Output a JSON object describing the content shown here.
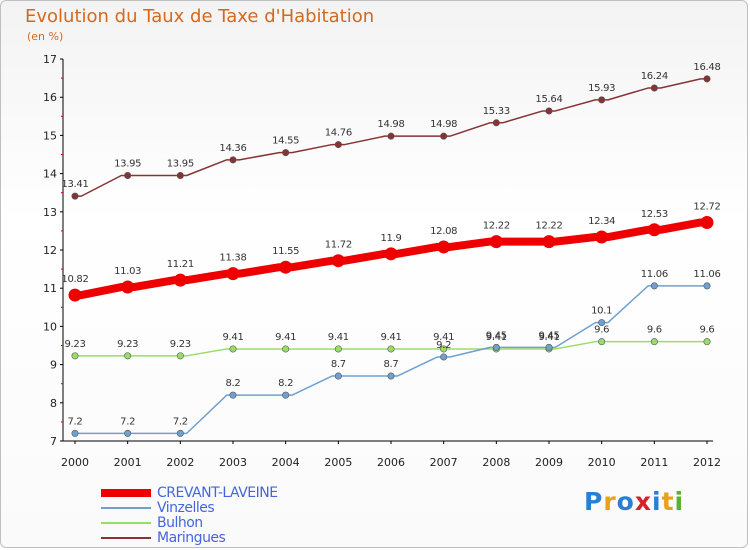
{
  "header": {
    "title": "Evolution du Taux de Taxe d'Habitation",
    "unit": "(en %)"
  },
  "logo": {
    "letters": [
      "P",
      "r",
      "o",
      "x",
      "i",
      "t",
      "i"
    ],
    "colors": [
      "#2a7fd4",
      "#e8a020",
      "#2a7fd4",
      "#d4232a",
      "#2a7fd4",
      "#e8a020",
      "#5ab02f"
    ]
  },
  "chart_data": {
    "type": "line",
    "title": "Evolution du Taux de Taxe d'Habitation",
    "ylabel": "(en %)",
    "xlabel": "",
    "x": [
      "2000",
      "2001",
      "2002",
      "2003",
      "2004",
      "2005",
      "2006",
      "2007",
      "2008",
      "2009",
      "2010",
      "2011",
      "2012"
    ],
    "ylim": [
      7,
      17
    ],
    "yticks": [
      "7",
      "8",
      "9",
      "10",
      "11",
      "12",
      "13",
      "14",
      "15",
      "16",
      "17"
    ],
    "grid": false,
    "legend_position": "bottom-left",
    "series": [
      {
        "name": "CREVANT-LAVEINE",
        "color": "#ee0000",
        "values": [
          10.82,
          11.03,
          11.21,
          11.38,
          11.55,
          11.72,
          11.9,
          12.08,
          12.22,
          12.22,
          12.34,
          12.53,
          12.72
        ],
        "labels": [
          "10.82",
          "11.03",
          "11.21",
          "11.38",
          "11.55",
          "11.72",
          "11.9",
          "12.08",
          "12.22",
          "12.22",
          "12.34",
          "12.53",
          "12.72"
        ]
      },
      {
        "name": "Vinzelles",
        "color": "#6fa0d0",
        "values": [
          7.2,
          7.2,
          7.2,
          8.2,
          8.2,
          8.7,
          8.7,
          9.2,
          9.45,
          9.45,
          10.1,
          11.06,
          11.06
        ],
        "labels": [
          "7.2",
          "7.2",
          "7.2",
          "8.2",
          "8.2",
          "8.7",
          "8.7",
          "9.2",
          "9.45",
          "9.45",
          "10.1",
          "11.06",
          "11.06"
        ]
      },
      {
        "name": "Bulhon",
        "color": "#99dd66",
        "values": [
          9.23,
          9.23,
          9.23,
          9.41,
          9.41,
          9.41,
          9.41,
          9.41,
          9.41,
          9.41,
          9.6,
          9.6,
          9.6
        ],
        "labels": [
          "9.23",
          "9.23",
          "9.23",
          "9.41",
          "9.41",
          "9.41",
          "9.41",
          "9.41",
          "9.41",
          "9.41",
          "9.6",
          "9.6",
          "9.6"
        ]
      },
      {
        "name": "Maringues",
        "color": "#883333",
        "values": [
          13.41,
          13.95,
          13.95,
          14.36,
          14.55,
          14.76,
          14.98,
          14.98,
          15.33,
          15.64,
          15.93,
          16.24,
          16.48
        ],
        "labels": [
          "13.41",
          "13.95",
          "13.95",
          "14.36",
          "14.55",
          "14.76",
          "14.98",
          "14.98",
          "15.33",
          "15.64",
          "15.93",
          "16.24",
          "16.48"
        ]
      }
    ]
  }
}
